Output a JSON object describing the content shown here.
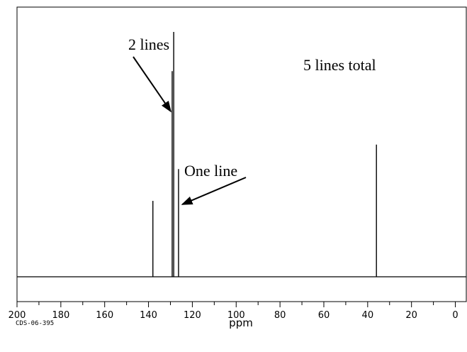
{
  "chart_data": {
    "type": "line",
    "title": "",
    "xlabel": "ppm",
    "ylabel": "",
    "x_reversed": true,
    "xlim": [
      200,
      -5
    ],
    "ylim": [
      0,
      100
    ],
    "x_ticks": [
      200,
      180,
      160,
      140,
      120,
      100,
      80,
      60,
      40,
      20,
      0
    ],
    "x_tick_labels": [
      "200",
      "180",
      "160",
      "140",
      "120",
      "100",
      "80",
      "60",
      "40",
      "20",
      "0"
    ],
    "x_minor_step": 10,
    "grid": false,
    "peaks": [
      {
        "ppm": 138.0,
        "height": 31
      },
      {
        "ppm": 129.2,
        "height": 84
      },
      {
        "ppm": 128.5,
        "height": 100
      },
      {
        "ppm": 126.3,
        "height": 44
      },
      {
        "ppm": 36.0,
        "height": 54
      }
    ],
    "annotations": [
      {
        "text": "2 lines",
        "target_ppm": 128.9,
        "target_height": 67
      },
      {
        "text": "One line",
        "target_ppm": 125.5,
        "target_height": 29
      },
      {
        "text": "5 lines total"
      }
    ],
    "footer_code": "CDS-06-395"
  },
  "colors": {
    "background": "#ffffff",
    "foreground": "#000000"
  }
}
